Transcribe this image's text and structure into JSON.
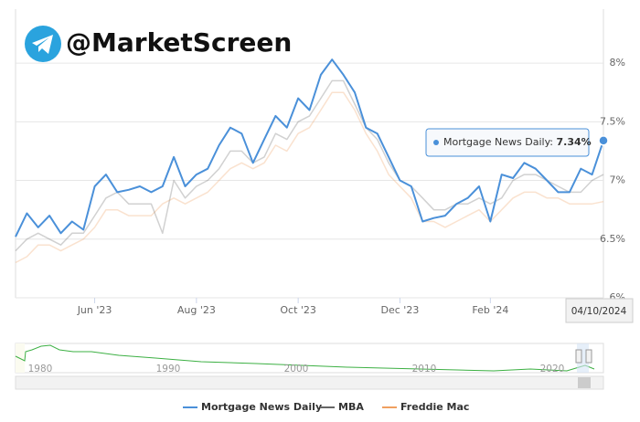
{
  "watermark": "@MarketScreen",
  "chart_data": {
    "type": "line",
    "categories": [
      null,
      null,
      null,
      null,
      null,
      null,
      null,
      "Jun '23",
      null,
      null,
      null,
      null,
      null,
      null,
      null,
      null,
      "Aug '23",
      null,
      null,
      null,
      null,
      null,
      null,
      null,
      null,
      "Oct '23",
      null,
      null,
      null,
      null,
      null,
      null,
      null,
      null,
      "Dec '23",
      null,
      null,
      null,
      null,
      null,
      null,
      null,
      "Feb '24",
      null,
      null,
      null,
      null,
      null,
      null,
      null,
      null,
      null,
      null
    ],
    "series": [
      {
        "name": "Mortgage News Daily",
        "color": "#4a90d9",
        "values": [
          6.52,
          6.72,
          6.6,
          6.7,
          6.55,
          6.65,
          6.58,
          6.95,
          7.05,
          6.9,
          6.92,
          6.95,
          6.9,
          6.95,
          7.2,
          6.95,
          7.05,
          7.1,
          7.3,
          7.45,
          7.4,
          7.15,
          7.35,
          7.55,
          7.45,
          7.7,
          7.6,
          7.9,
          8.03,
          7.9,
          7.75,
          7.45,
          7.4,
          7.2,
          7.0,
          6.95,
          6.65,
          6.68,
          6.7,
          6.8,
          6.85,
          6.95,
          6.65,
          7.05,
          7.02,
          7.15,
          7.1,
          7.0,
          6.9,
          6.9,
          7.1,
          7.05,
          7.34
        ]
      },
      {
        "name": "MBA",
        "color": "#666666",
        "values": [
          6.4,
          6.5,
          6.55,
          6.5,
          6.45,
          6.55,
          6.55,
          6.7,
          6.85,
          6.9,
          6.8,
          6.8,
          6.8,
          6.55,
          7.0,
          6.85,
          6.95,
          7.0,
          7.1,
          7.25,
          7.25,
          7.15,
          7.2,
          7.4,
          7.35,
          7.5,
          7.55,
          7.7,
          7.85,
          7.85,
          7.65,
          7.45,
          7.35,
          7.15,
          7.0,
          6.95,
          6.85,
          6.75,
          6.75,
          6.8,
          6.8,
          6.85,
          6.8,
          6.85,
          7.0,
          7.05,
          7.05,
          7.0,
          6.95,
          6.9,
          6.9,
          7.0,
          7.05
        ]
      },
      {
        "name": "Freddie Mac",
        "color": "#f0a060",
        "values": [
          6.3,
          6.35,
          6.45,
          6.45,
          6.4,
          6.45,
          6.5,
          6.6,
          6.75,
          6.75,
          6.7,
          6.7,
          6.7,
          6.8,
          6.85,
          6.8,
          6.85,
          6.9,
          7.0,
          7.1,
          7.15,
          7.1,
          7.15,
          7.3,
          7.25,
          7.4,
          7.45,
          7.6,
          7.75,
          7.75,
          7.6,
          7.4,
          7.25,
          7.05,
          6.95,
          6.85,
          6.65,
          6.65,
          6.6,
          6.65,
          6.7,
          6.75,
          6.65,
          6.75,
          6.85,
          6.9,
          6.9,
          6.85,
          6.85,
          6.8,
          6.8,
          6.8,
          6.82
        ]
      }
    ],
    "ylim": [
      6,
      8.46
    ],
    "yticks": [
      {
        "value": 6,
        "label": "6%"
      },
      {
        "value": 6.5,
        "label": "6.5%"
      },
      {
        "value": 7,
        "label": "7%"
      },
      {
        "value": 7.5,
        "label": "7.5%"
      },
      {
        "value": 8,
        "label": "8%"
      }
    ],
    "grid": true,
    "tooltip": {
      "name": "Mortgage News Daily",
      "value": 7.34,
      "value_label": "7.34%"
    },
    "current_date": "04/10/2024",
    "navigator_labels": [
      "1980",
      "1990",
      "2000",
      "2010",
      "2020"
    ]
  }
}
